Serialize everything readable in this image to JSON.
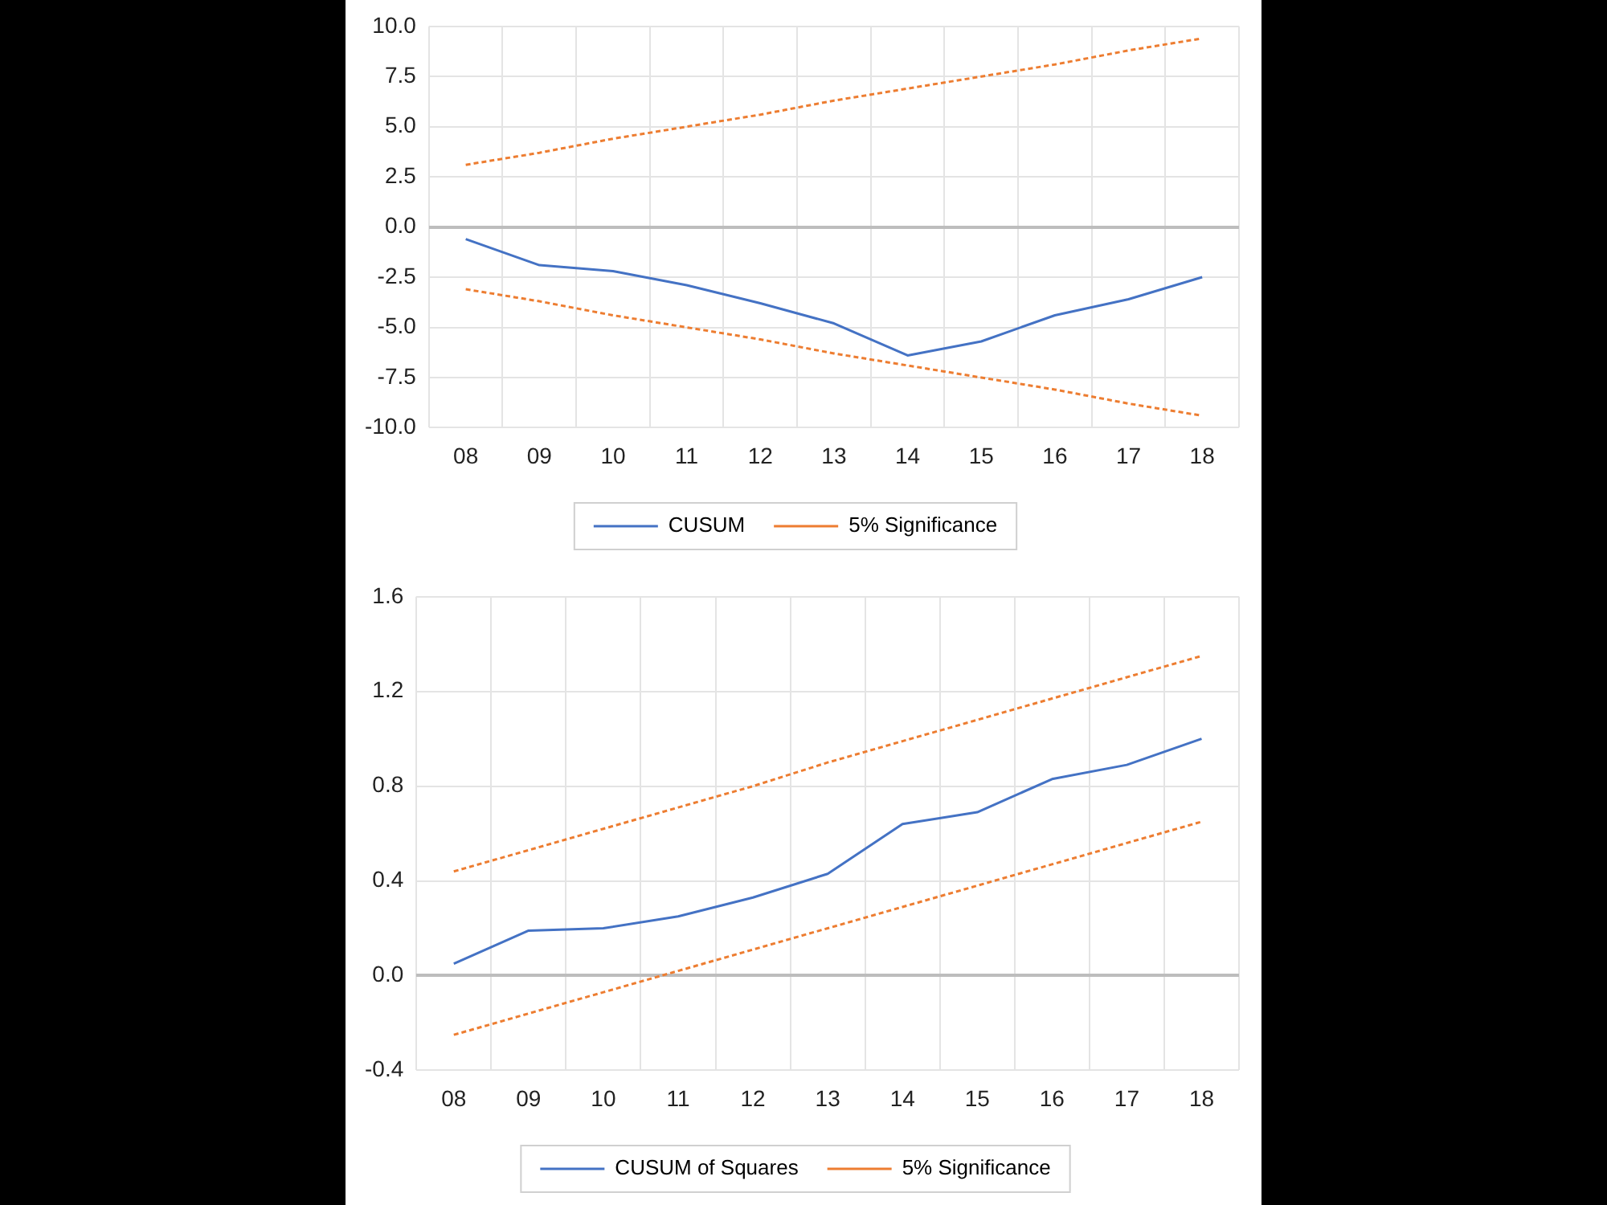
{
  "chart_data": [
    {
      "type": "line",
      "categories": [
        "08",
        "09",
        "10",
        "11",
        "12",
        "13",
        "14",
        "15",
        "16",
        "17",
        "18"
      ],
      "series": [
        {
          "name": "CUSUM",
          "color": "#4472c4",
          "line_style": "solid",
          "values": [
            -0.6,
            -1.9,
            -2.2,
            -2.9,
            -3.8,
            -4.8,
            -6.4,
            -5.7,
            -4.4,
            -3.6,
            -2.5
          ]
        },
        {
          "name": "5% Significance",
          "color": "#ed7d31",
          "line_style": "dashed",
          "values": [
            3.1,
            3.7,
            4.4,
            5.0,
            5.6,
            6.3,
            6.9,
            7.5,
            8.1,
            8.8,
            9.4
          ]
        },
        {
          "color": "#ed7d31",
          "line_style": "dashed",
          "values": [
            -3.1,
            -3.7,
            -4.4,
            -5.0,
            -5.6,
            -6.3,
            -6.9,
            -7.5,
            -8.1,
            -8.8,
            -9.4
          ]
        }
      ],
      "ylim": [
        -10,
        10
      ],
      "yticks": [
        {
          "value": -10,
          "label": "-10.0"
        },
        {
          "value": -7.5,
          "label": "-7.5"
        },
        {
          "value": -5,
          "label": "-5.0"
        },
        {
          "value": -2.5,
          "label": "-2.5"
        },
        {
          "value": 0,
          "label": "0.0"
        },
        {
          "value": 2.5,
          "label": "2.5"
        },
        {
          "value": 5,
          "label": "5.0"
        },
        {
          "value": 7.5,
          "label": "7.5"
        },
        {
          "value": 10,
          "label": "10.0"
        }
      ],
      "grid": true,
      "legend": "bottom",
      "marker": "none"
    },
    {
      "type": "line",
      "categories": [
        "08",
        "09",
        "10",
        "11",
        "12",
        "13",
        "14",
        "15",
        "16",
        "17",
        "18"
      ],
      "series": [
        {
          "name": "CUSUM of Squares",
          "color": "#4472c4",
          "line_style": "solid",
          "values": [
            0.05,
            0.19,
            0.2,
            0.25,
            0.33,
            0.43,
            0.64,
            0.69,
            0.83,
            0.89,
            1.0
          ]
        },
        {
          "name": "5% Significance",
          "color": "#ed7d31",
          "line_style": "dashed",
          "values": [
            0.44,
            0.53,
            0.62,
            0.71,
            0.8,
            0.9,
            0.99,
            1.08,
            1.17,
            1.26,
            1.35
          ]
        },
        {
          "color": "#ed7d31",
          "line_style": "dashed",
          "values": [
            -0.25,
            -0.16,
            -0.07,
            0.02,
            0.11,
            0.2,
            0.29,
            0.38,
            0.47,
            0.56,
            0.65
          ]
        }
      ],
      "ylim": [
        -0.4,
        1.6
      ],
      "yticks": [
        -0.4,
        {
          "value": 0,
          "label": "0.0"
        },
        0.4,
        0.8,
        1.2,
        1.6
      ],
      "grid": true,
      "legend": "bottom",
      "marker": "none"
    }
  ]
}
